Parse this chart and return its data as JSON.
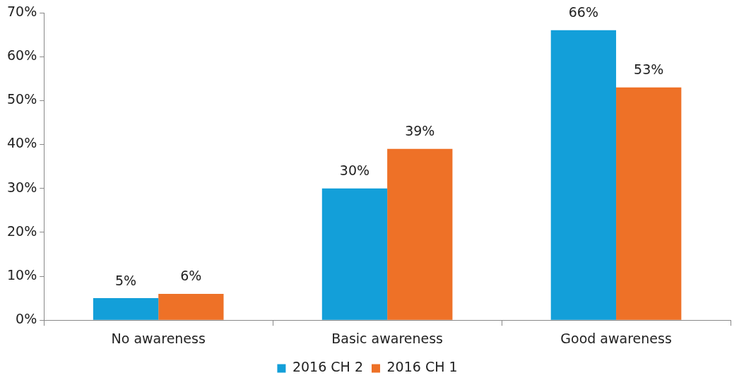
{
  "chart_data": {
    "type": "bar",
    "categories": [
      "No awareness",
      "Basic awareness",
      "Good awareness"
    ],
    "series": [
      {
        "name": "2016 CH 2",
        "color": "#139fd9",
        "values": [
          5,
          30,
          66
        ],
        "value_labels": [
          "5%",
          "30%",
          "66%"
        ]
      },
      {
        "name": "2016 CH 1",
        "color": "#ee7127",
        "values": [
          6,
          39,
          53
        ],
        "value_labels": [
          "6%",
          "39%",
          "53%"
        ]
      }
    ],
    "ylim": [
      0,
      70
    ],
    "yticks": [
      {
        "value": 0,
        "label": "0%"
      },
      {
        "value": 10,
        "label": "10%"
      },
      {
        "value": 20,
        "label": "20%"
      },
      {
        "value": 30,
        "label": "30%"
      },
      {
        "value": 40,
        "label": "40%"
      },
      {
        "value": 50,
        "label": "50%"
      },
      {
        "value": 60,
        "label": "60%"
      },
      {
        "value": 70,
        "label": "70%"
      }
    ],
    "legend": "bottom"
  }
}
